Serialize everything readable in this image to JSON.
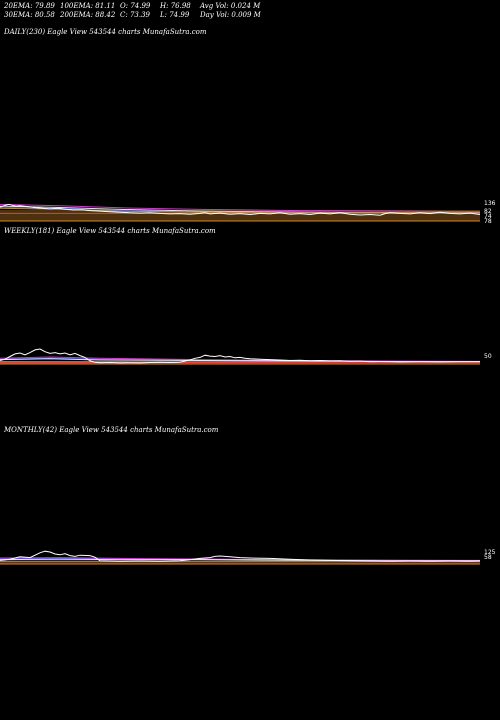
{
  "header": {
    "row1": [
      "20EMA: 79.89",
      "100EMA: 81.11",
      "O: 74.99",
      "H: 76.98",
      "Avg Vol: 0.024  M"
    ],
    "row2": [
      "30EMA: 80.58",
      "200EMA: 88.42",
      "C: 73.39",
      "L: 74.99",
      "Day Vol: 0.009 M"
    ]
  },
  "chart_data": [
    {
      "type": "line",
      "label": "DAILY(230) Eagle   View  543544  charts MunafaSutra.com",
      "ylim": [
        40,
        200
      ],
      "tick_labels": [
        "136",
        "82",
        "74",
        "78"
      ],
      "price_line": [
        [
          0,
          100
        ],
        [
          3,
          104
        ],
        [
          6,
          108
        ],
        [
          9,
          110
        ],
        [
          12,
          107
        ],
        [
          16,
          104
        ],
        [
          20,
          105
        ],
        [
          25,
          103
        ],
        [
          30,
          101
        ],
        [
          36,
          98
        ],
        [
          42,
          96
        ],
        [
          50,
          94
        ],
        [
          58,
          96
        ],
        [
          66,
          93
        ],
        [
          74,
          90
        ],
        [
          82,
          91
        ],
        [
          90,
          88
        ],
        [
          100,
          86
        ],
        [
          110,
          84
        ],
        [
          120,
          82
        ],
        [
          130,
          80
        ],
        [
          140,
          79
        ],
        [
          150,
          80
        ],
        [
          160,
          78
        ],
        [
          170,
          76
        ],
        [
          180,
          77
        ],
        [
          190,
          75
        ],
        [
          200,
          78
        ],
        [
          205,
          80
        ],
        [
          210,
          76
        ],
        [
          220,
          79
        ],
        [
          230,
          75
        ],
        [
          240,
          77
        ],
        [
          250,
          74
        ],
        [
          260,
          78
        ],
        [
          270,
          76
        ],
        [
          280,
          80
        ],
        [
          290,
          75
        ],
        [
          300,
          77
        ],
        [
          310,
          74
        ],
        [
          320,
          79
        ],
        [
          330,
          76
        ],
        [
          340,
          80
        ],
        [
          350,
          75
        ],
        [
          360,
          72
        ],
        [
          370,
          74
        ],
        [
          380,
          71
        ],
        [
          385,
          77
        ],
        [
          390,
          80
        ],
        [
          400,
          78
        ],
        [
          410,
          76
        ],
        [
          420,
          80
        ],
        [
          430,
          77
        ],
        [
          440,
          82
        ],
        [
          450,
          78
        ],
        [
          460,
          76
        ],
        [
          470,
          79
        ],
        [
          480,
          74
        ]
      ],
      "ema_lines": [
        {
          "color": "#e040e0",
          "values": [
            [
              0,
              110
            ],
            [
              60,
              105
            ],
            [
              120,
              98
            ],
            [
              200,
              92
            ],
            [
              300,
              88
            ],
            [
              400,
              86
            ],
            [
              480,
              84
            ]
          ]
        },
        {
          "color": "#ffffff",
          "values": [
            [
              0,
              104
            ],
            [
              60,
              99
            ],
            [
              120,
              92
            ],
            [
              200,
              86
            ],
            [
              300,
              82
            ],
            [
              400,
              80
            ],
            [
              480,
              80
            ]
          ]
        },
        {
          "color": "#3b5bff",
          "values": [
            [
              0,
              100
            ],
            [
              60,
              95
            ],
            [
              120,
              88
            ],
            [
              200,
              83
            ],
            [
              300,
              80
            ],
            [
              400,
              79
            ],
            [
              480,
              78
            ]
          ]
        },
        {
          "color": "#c8a050",
          "values": [
            [
              0,
              96
            ],
            [
              60,
              92
            ],
            [
              120,
              86
            ],
            [
              200,
              82
            ],
            [
              300,
              80
            ],
            [
              400,
              80
            ],
            [
              480,
              79
            ]
          ]
        },
        {
          "color": "#ff4040",
          "values": [
            [
              0,
              78
            ],
            [
              480,
              78
            ]
          ]
        }
      ]
    },
    {
      "type": "line",
      "label": "WEEKLY(181) Eagle   View  543544  charts MunafaSutra.com",
      "ylim": [
        40,
        260
      ],
      "tick_labels": [
        "50"
      ],
      "price_line": [
        [
          0,
          56
        ],
        [
          5,
          62
        ],
        [
          10,
          74
        ],
        [
          15,
          86
        ],
        [
          20,
          90
        ],
        [
          25,
          82
        ],
        [
          30,
          92
        ],
        [
          35,
          104
        ],
        [
          40,
          108
        ],
        [
          45,
          96
        ],
        [
          50,
          88
        ],
        [
          55,
          92
        ],
        [
          60,
          86
        ],
        [
          65,
          90
        ],
        [
          70,
          82
        ],
        [
          75,
          88
        ],
        [
          80,
          78
        ],
        [
          85,
          70
        ],
        [
          90,
          54
        ],
        [
          95,
          48
        ],
        [
          100,
          46
        ],
        [
          110,
          47
        ],
        [
          120,
          45
        ],
        [
          130,
          46
        ],
        [
          140,
          45
        ],
        [
          150,
          47
        ],
        [
          160,
          48
        ],
        [
          170,
          47
        ],
        [
          180,
          48
        ],
        [
          185,
          54
        ],
        [
          190,
          58
        ],
        [
          195,
          66
        ],
        [
          200,
          70
        ],
        [
          205,
          80
        ],
        [
          210,
          76
        ],
        [
          215,
          74
        ],
        [
          220,
          78
        ],
        [
          225,
          72
        ],
        [
          230,
          74
        ],
        [
          235,
          68
        ],
        [
          240,
          70
        ],
        [
          245,
          66
        ],
        [
          250,
          64
        ],
        [
          260,
          62
        ],
        [
          270,
          60
        ],
        [
          280,
          58
        ],
        [
          290,
          56
        ],
        [
          300,
          57
        ],
        [
          310,
          55
        ],
        [
          320,
          56
        ],
        [
          330,
          54
        ],
        [
          340,
          55
        ],
        [
          350,
          52
        ],
        [
          360,
          53
        ],
        [
          370,
          50
        ],
        [
          380,
          51
        ],
        [
          390,
          50
        ],
        [
          400,
          49
        ],
        [
          420,
          50
        ],
        [
          440,
          49
        ],
        [
          460,
          50
        ],
        [
          480,
          50
        ]
      ],
      "ema_lines": [
        {
          "color": "#3b5bff",
          "values": [
            [
              0,
              62
            ],
            [
              50,
              66
            ],
            [
              100,
              62
            ],
            [
              200,
              58
            ],
            [
              300,
              55
            ],
            [
              400,
              52
            ],
            [
              480,
              51
            ]
          ]
        },
        {
          "color": "#e040e0",
          "values": [
            [
              0,
              66
            ],
            [
              50,
              72
            ],
            [
              100,
              66
            ],
            [
              200,
              60
            ],
            [
              300,
              56
            ],
            [
              400,
              53
            ],
            [
              480,
              52
            ]
          ]
        },
        {
          "color": "#ffffff",
          "values": [
            [
              0,
              60
            ],
            [
              50,
              64
            ],
            [
              100,
              58
            ],
            [
              200,
              56
            ],
            [
              300,
              54
            ],
            [
              400,
              51
            ],
            [
              480,
              50
            ]
          ]
        },
        {
          "color": "#c8a050",
          "values": [
            [
              0,
              50
            ],
            [
              480,
              49
            ]
          ]
        },
        {
          "color": "#ff4040",
          "values": [
            [
              0,
              46
            ],
            [
              480,
              48
            ]
          ]
        }
      ]
    },
    {
      "type": "line",
      "label": "MONTHLY(42) Eagle   View  543544  charts MunafaSutra.com",
      "ylim": [
        40,
        260
      ],
      "tick_labels": [
        "125",
        "58"
      ],
      "price_line": [
        [
          0,
          58
        ],
        [
          10,
          64
        ],
        [
          20,
          76
        ],
        [
          30,
          72
        ],
        [
          40,
          96
        ],
        [
          45,
          104
        ],
        [
          50,
          100
        ],
        [
          55,
          90
        ],
        [
          60,
          86
        ],
        [
          65,
          92
        ],
        [
          70,
          82
        ],
        [
          75,
          78
        ],
        [
          80,
          84
        ],
        [
          90,
          82
        ],
        [
          95,
          74
        ],
        [
          100,
          56
        ],
        [
          110,
          55
        ],
        [
          120,
          54
        ],
        [
          140,
          55
        ],
        [
          160,
          54
        ],
        [
          180,
          56
        ],
        [
          190,
          62
        ],
        [
          200,
          68
        ],
        [
          210,
          72
        ],
        [
          215,
          78
        ],
        [
          220,
          80
        ],
        [
          230,
          76
        ],
        [
          240,
          72
        ],
        [
          250,
          70
        ],
        [
          270,
          68
        ],
        [
          290,
          64
        ],
        [
          310,
          60
        ],
        [
          330,
          58
        ],
        [
          350,
          56
        ],
        [
          370,
          55
        ],
        [
          390,
          54
        ],
        [
          410,
          55
        ],
        [
          430,
          54
        ],
        [
          450,
          55
        ],
        [
          470,
          54
        ],
        [
          480,
          55
        ]
      ],
      "ema_lines": [
        {
          "color": "#3b5bff",
          "values": [
            [
              0,
              66
            ],
            [
              60,
              68
            ],
            [
              120,
              66
            ],
            [
              200,
              64
            ],
            [
              300,
              60
            ],
            [
              400,
              58
            ],
            [
              480,
              57
            ]
          ]
        },
        {
          "color": "#e040e0",
          "values": [
            [
              0,
              70
            ],
            [
              60,
              72
            ],
            [
              120,
              68
            ],
            [
              200,
              65
            ],
            [
              300,
              61
            ],
            [
              400,
              59
            ],
            [
              480,
              58
            ]
          ]
        },
        {
          "color": "#ffffff",
          "values": [
            [
              0,
              62
            ],
            [
              60,
              64
            ],
            [
              120,
              62
            ],
            [
              200,
              62
            ],
            [
              300,
              58
            ],
            [
              400,
              56
            ],
            [
              480,
              56
            ]
          ]
        },
        {
          "color": "#c8a050",
          "values": [
            [
              0,
              54
            ],
            [
              480,
              54
            ]
          ]
        },
        {
          "color": "#ff4040",
          "values": [
            [
              0,
              52
            ],
            [
              480,
              52
            ]
          ]
        }
      ]
    }
  ]
}
